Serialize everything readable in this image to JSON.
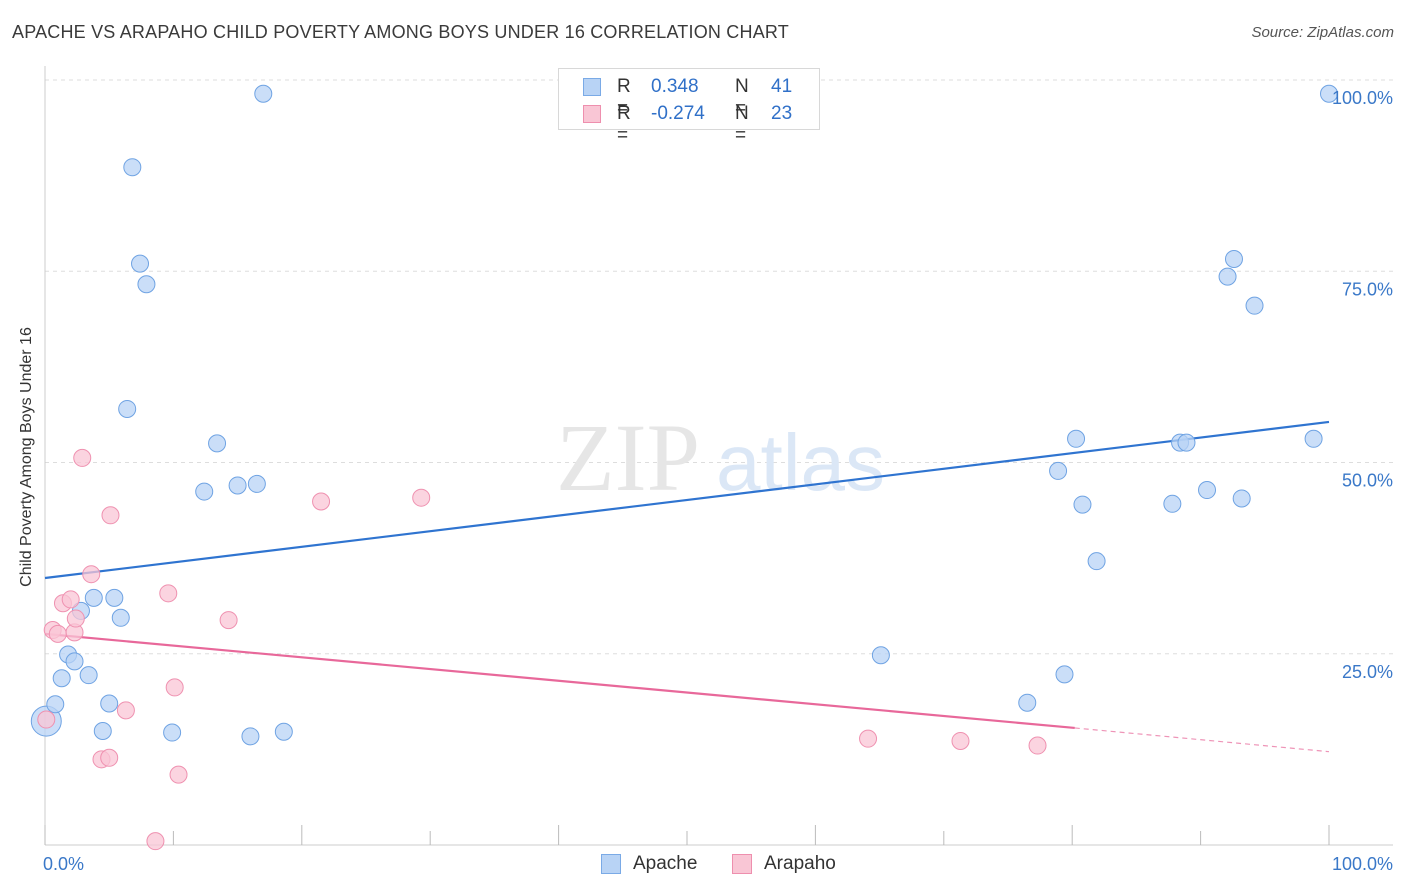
{
  "header": {
    "title": "APACHE VS ARAPAHO CHILD POVERTY AMONG BOYS UNDER 16 CORRELATION CHART",
    "source": "Source: ZipAtlas.com"
  },
  "watermark": {
    "part1": "ZIP",
    "part2": "atlas"
  },
  "legend": {
    "rows": [
      {
        "r_key": "R =",
        "r_value": "0.348",
        "n_key": "N =",
        "n_value": "41",
        "fill": "#b8d3f5",
        "stroke": "#7aaae6"
      },
      {
        "r_key": "R =",
        "r_value": "-0.274",
        "n_key": "N =",
        "n_value": "23",
        "fill": "#f9c6d5",
        "stroke": "#ee8fae"
      }
    ]
  },
  "bottom_legend": [
    {
      "label": "Apache",
      "fill": "#b8d3f5",
      "stroke": "#7aaae6"
    },
    {
      "label": "Arapaho",
      "fill": "#f9c6d5",
      "stroke": "#ee8fae"
    }
  ],
  "chart_data": {
    "type": "scatter",
    "title": "APACHE VS ARAPAHO CHILD POVERTY AMONG BOYS UNDER 16 CORRELATION CHART",
    "xlabel": "",
    "ylabel": "Child Poverty Among Boys Under 16",
    "xlim": [
      0,
      100
    ],
    "ylim": [
      0,
      100
    ],
    "x_tick_labels": [
      "0.0%",
      "100.0%"
    ],
    "y_ticks": [
      {
        "value": 25,
        "label": "25.0%"
      },
      {
        "value": 50,
        "label": "50.0%"
      },
      {
        "value": 75,
        "label": "75.0%"
      },
      {
        "value": 100,
        "label": "100.0%"
      }
    ],
    "grid": true,
    "legend_placement": "top-center",
    "series": [
      {
        "name": "Apache",
        "color": "#6fa3e3",
        "fill": "#b8d3f5",
        "trend": {
          "x": [
            0,
            100
          ],
          "y": [
            34.9,
            55.3
          ],
          "color": "#2f74d0"
        },
        "points": [
          {
            "x": 0.1,
            "y": 16.2,
            "big": true
          },
          {
            "x": 0.8,
            "y": 18.4
          },
          {
            "x": 1.3,
            "y": 21.8
          },
          {
            "x": 1.8,
            "y": 24.9
          },
          {
            "x": 2.3,
            "y": 24.0
          },
          {
            "x": 2.8,
            "y": 30.6
          },
          {
            "x": 3.4,
            "y": 22.2
          },
          {
            "x": 3.8,
            "y": 32.3
          },
          {
            "x": 4.5,
            "y": 14.9
          },
          {
            "x": 5.0,
            "y": 18.5
          },
          {
            "x": 5.4,
            "y": 32.3
          },
          {
            "x": 5.9,
            "y": 29.7
          },
          {
            "x": 6.4,
            "y": 57.0
          },
          {
            "x": 6.8,
            "y": 88.6
          },
          {
            "x": 7.4,
            "y": 76.0
          },
          {
            "x": 7.9,
            "y": 73.3
          },
          {
            "x": 9.9,
            "y": 14.7
          },
          {
            "x": 12.4,
            "y": 46.2
          },
          {
            "x": 13.4,
            "y": 52.5
          },
          {
            "x": 15.0,
            "y": 47.0
          },
          {
            "x": 16.0,
            "y": 14.2
          },
          {
            "x": 16.5,
            "y": 47.2
          },
          {
            "x": 17.0,
            "y": 98.2
          },
          {
            "x": 18.6,
            "y": 14.8
          },
          {
            "x": 65.1,
            "y": 24.8
          },
          {
            "x": 76.5,
            "y": 18.6
          },
          {
            "x": 78.9,
            "y": 48.9
          },
          {
            "x": 79.4,
            "y": 22.3
          },
          {
            "x": 80.3,
            "y": 53.1
          },
          {
            "x": 80.8,
            "y": 44.5
          },
          {
            "x": 81.9,
            "y": 37.1
          },
          {
            "x": 87.8,
            "y": 44.6
          },
          {
            "x": 88.4,
            "y": 52.6
          },
          {
            "x": 88.9,
            "y": 52.6
          },
          {
            "x": 90.5,
            "y": 46.4
          },
          {
            "x": 92.1,
            "y": 74.3
          },
          {
            "x": 92.6,
            "y": 76.6
          },
          {
            "x": 93.2,
            "y": 45.3
          },
          {
            "x": 94.2,
            "y": 70.5
          },
          {
            "x": 98.8,
            "y": 53.1
          },
          {
            "x": 100.0,
            "y": 98.2
          }
        ]
      },
      {
        "name": "Arapaho",
        "color": "#ef91b0",
        "fill": "#f9c6d5",
        "trend": {
          "x": [
            0,
            80.2
          ],
          "y": [
            27.6,
            15.3
          ],
          "dash_to": {
            "x": 100,
            "y": 12.2
          },
          "color": "#e8689a"
        },
        "points": [
          {
            "x": 0.1,
            "y": 16.4
          },
          {
            "x": 0.6,
            "y": 28.1
          },
          {
            "x": 1.0,
            "y": 27.6
          },
          {
            "x": 1.4,
            "y": 31.6
          },
          {
            "x": 2.0,
            "y": 32.1
          },
          {
            "x": 2.3,
            "y": 27.8
          },
          {
            "x": 2.4,
            "y": 29.6
          },
          {
            "x": 2.9,
            "y": 50.6
          },
          {
            "x": 3.6,
            "y": 35.4
          },
          {
            "x": 4.4,
            "y": 11.2
          },
          {
            "x": 5.0,
            "y": 11.4
          },
          {
            "x": 5.1,
            "y": 43.1
          },
          {
            "x": 6.3,
            "y": 17.6
          },
          {
            "x": 8.6,
            "y": 0.5
          },
          {
            "x": 9.6,
            "y": 32.9
          },
          {
            "x": 10.1,
            "y": 20.6
          },
          {
            "x": 10.4,
            "y": 9.2
          },
          {
            "x": 14.3,
            "y": 29.4
          },
          {
            "x": 21.5,
            "y": 44.9
          },
          {
            "x": 29.3,
            "y": 45.4
          },
          {
            "x": 64.1,
            "y": 13.9
          },
          {
            "x": 71.3,
            "y": 13.6
          },
          {
            "x": 77.3,
            "y": 13.0
          }
        ]
      }
    ]
  }
}
